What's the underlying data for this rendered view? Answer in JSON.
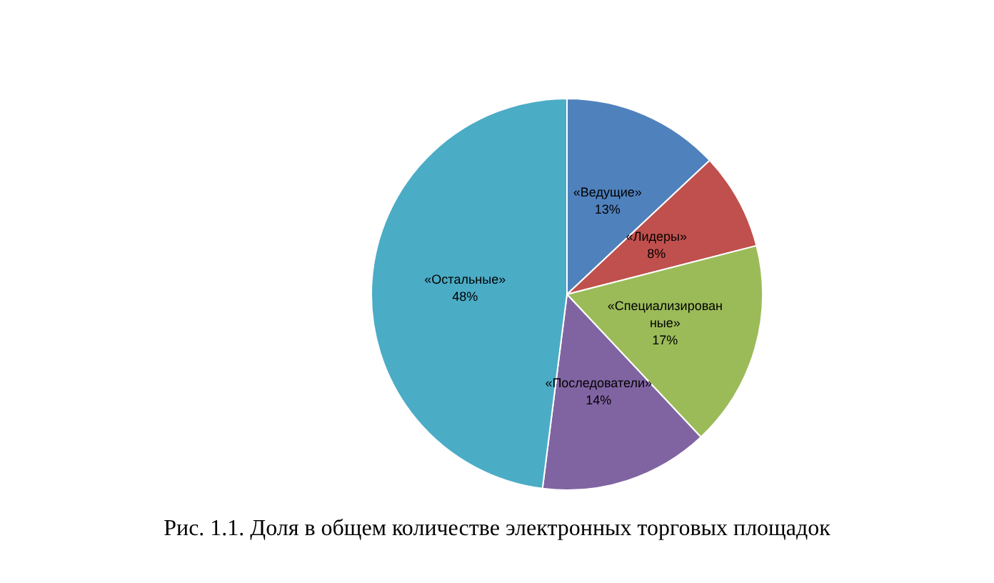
{
  "chart_data": {
    "type": "pie",
    "categories": [
      "«Ведущие»",
      "«Лидеры»",
      "«Специализированные»",
      "«Последователи»",
      "«Остальные»"
    ],
    "values": [
      13,
      8,
      17,
      14,
      48
    ],
    "colors": [
      "#4f81bd",
      "#c0504d",
      "#9bbb59",
      "#8064a2",
      "#4bacc6"
    ],
    "value_labels": [
      "13%",
      "8%",
      "17%",
      "14%",
      "48%"
    ],
    "legend": false,
    "annotations": [
      "Рис. 1.1. Доля в общем количестве электронных торговых площадок"
    ]
  }
}
